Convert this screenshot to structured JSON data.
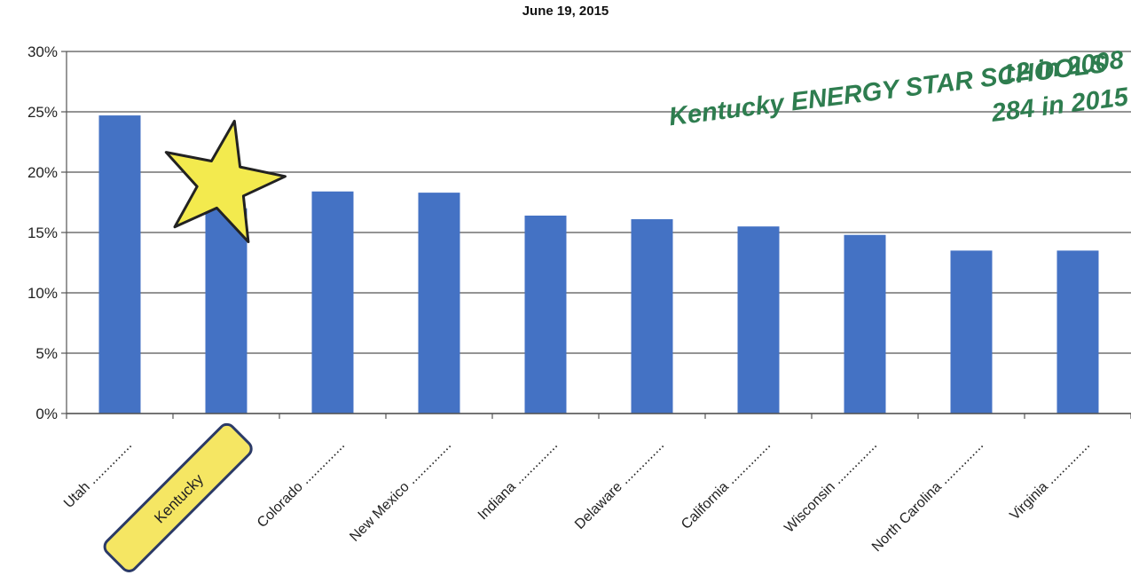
{
  "chart_data": {
    "type": "bar",
    "title": "",
    "subtitle": "June 19, 2015",
    "xlabel": "",
    "ylabel": "",
    "ylim": [
      0,
      0.3
    ],
    "yticks": [
      0,
      0.05,
      0.1,
      0.15,
      0.2,
      0.25,
      0.3
    ],
    "ytick_labels": [
      "0%",
      "5%",
      "10%",
      "15%",
      "20%",
      "25%",
      "30%"
    ],
    "grid": true,
    "categories": [
      "Utah",
      "Kentucky",
      "Colorado",
      "New Mexico",
      "Indiana",
      "Delaware",
      "California",
      "Wisconsin",
      "North Carolina",
      "Virginia"
    ],
    "values": [
      0.247,
      0.17,
      0.184,
      0.183,
      0.164,
      0.161,
      0.155,
      0.148,
      0.135,
      0.135
    ],
    "bar_color": "#4472C4",
    "highlight_category": "Kentucky",
    "highlight_color": "#f5e663",
    "annotation": {
      "lines": [
        "Kentucky ENERGY STAR SCHOOLS",
        "12 in 2008",
        "284 in 2015"
      ],
      "color": "#2e7d4f"
    }
  }
}
